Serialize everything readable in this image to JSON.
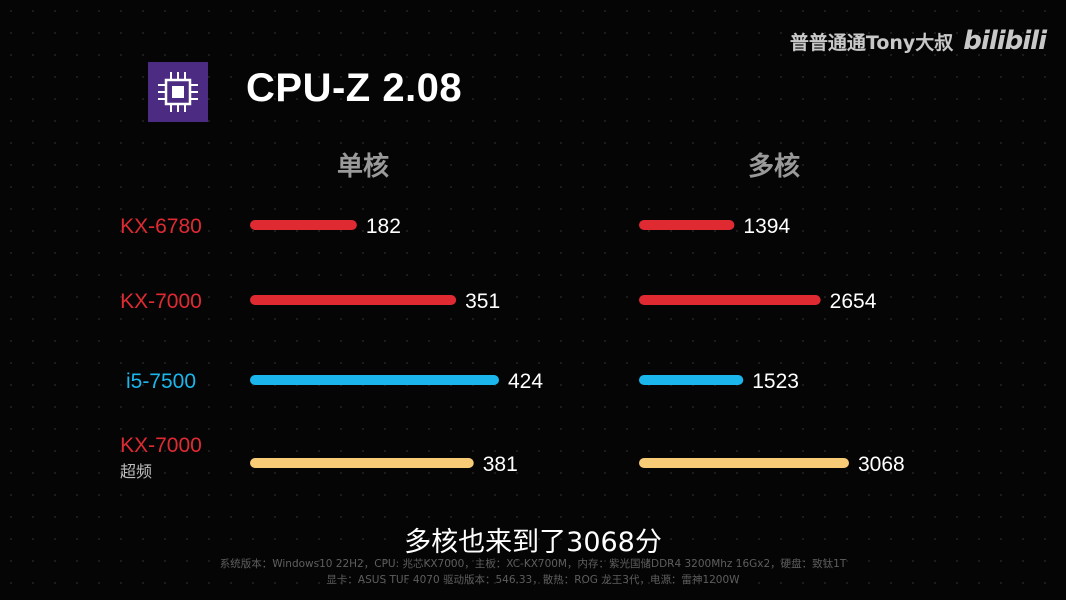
{
  "watermark": {
    "channel": "普普通通Tony大叔",
    "site": "bilibili"
  },
  "title": "CPU-Z 2.08",
  "caption": "多核也来到了3068分",
  "specs": {
    "line1": "系统版本：Windows10 22H2，CPU: 兆芯KX7000，主板：XC-KX700M，内存：紫光国储DDR4 3200Mhz 16Gx2，硬盘：致钛1T",
    "line2": "显卡：ASUS TUF 4070 驱动版本：546.33，散热：ROG 龙王3代，电源：雷神1200W"
  },
  "colors": {
    "red": "#e02a32",
    "blue": "#1ab6ec",
    "yellow": "#f8cb76",
    "logo_bg": "#4b2c82"
  },
  "chart_data": {
    "type": "bar",
    "orientation": "horizontal",
    "categories": [
      {
        "name": "KX-6780",
        "sub": "",
        "color": "#e02a32",
        "label_color": "#e02a32"
      },
      {
        "name": "KX-7000",
        "sub": "",
        "color": "#e02a32",
        "label_color": "#e02a32"
      },
      {
        "name": "i5-7500",
        "sub": "",
        "color": "#1ab6ec",
        "label_color": "#1ab6ec"
      },
      {
        "name": "KX-7000",
        "sub": "超频",
        "color": "#f8cb76",
        "label_color": "#e02a32"
      }
    ],
    "series": [
      {
        "name": "单核",
        "values": [
          182,
          351,
          424,
          381
        ],
        "xmax": 424
      },
      {
        "name": "多核",
        "values": [
          1394,
          2654,
          1523,
          3068
        ],
        "xmax": 3068
      }
    ]
  }
}
